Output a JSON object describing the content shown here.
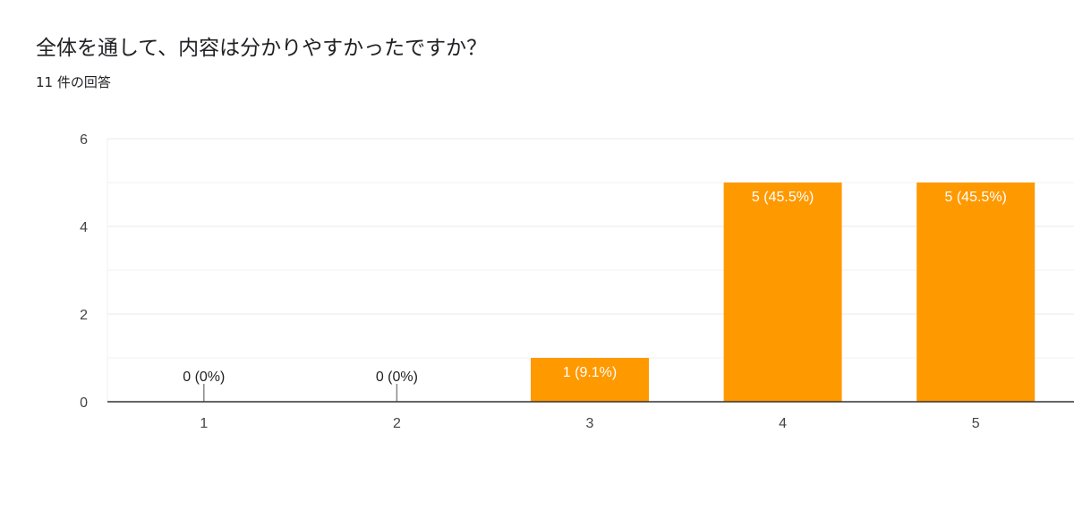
{
  "header": {
    "title": "全体を通して、内容は分かりやすかったですか？",
    "responses": "11 件の回答"
  },
  "chart_data": {
    "type": "bar",
    "title": "全体を通して、内容は分かりやすかったですか？",
    "subtitle": "11 件の回答",
    "categories": [
      "1",
      "2",
      "3",
      "4",
      "5"
    ],
    "values": [
      0,
      0,
      1,
      5,
      5
    ],
    "data_labels": [
      "0 (0%)",
      "0 (0%)",
      "1 (9.1%)",
      "5 (45.5%)",
      "5 (45.5%)"
    ],
    "yticks": [
      "0",
      "2",
      "4",
      "6"
    ],
    "ylim": [
      0,
      6
    ],
    "grid": true,
    "legend": "none",
    "xlabel": "",
    "ylabel": "",
    "bar_color": "#ff9900",
    "grid_color": "#e8e8e8",
    "axis_color": "#333333"
  }
}
